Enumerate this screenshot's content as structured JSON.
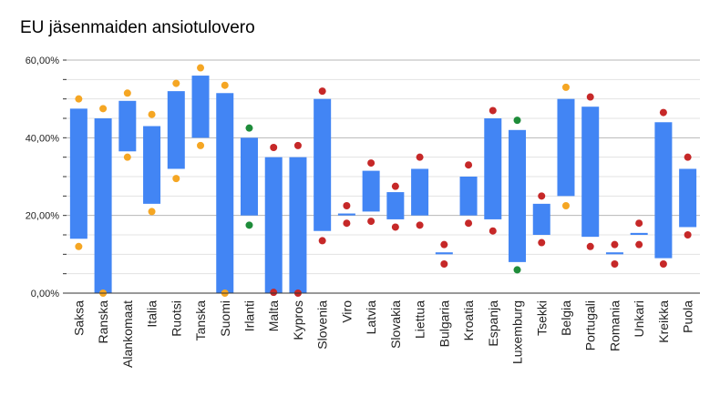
{
  "chart_data": {
    "type": "bar",
    "subtype": "floating-range",
    "title": "EU jäsenmaiden ansiotulovero",
    "xlabel": "",
    "ylabel": "",
    "ylim": [
      0,
      60
    ],
    "y_ticks": [
      "0,00%",
      "20,00%",
      "40,00%",
      "60,00%"
    ],
    "grid": true,
    "categories": [
      "Saksa",
      "Ranska",
      "Alankomaat",
      "Italia",
      "Ruotsi",
      "Tanska",
      "Suomi",
      "Irlanti",
      "Malta",
      "Kypros",
      "Slovenia",
      "Viro",
      "Latvia",
      "Slovakia",
      "Liettua",
      "Bulgaria",
      "Kroatia",
      "Espanja",
      "Luxemburg",
      "Tsekki",
      "Belgia",
      "Portugali",
      "Romania",
      "Unkari",
      "Kreikka",
      "Puola"
    ],
    "bar_color": "#4285f4",
    "series": [
      {
        "values_low": [
          14,
          0,
          36.5,
          23,
          32,
          40,
          0,
          20,
          0,
          0,
          16,
          20,
          21,
          19,
          20,
          10,
          20,
          19,
          8,
          15,
          25,
          14.5,
          10,
          15,
          9,
          17
        ],
        "values_high": [
          47.5,
          45,
          49.5,
          43,
          52,
          56,
          51.5,
          40,
          35,
          35,
          50,
          20.5,
          31.5,
          26,
          32,
          10.5,
          30,
          45,
          42,
          23,
          50,
          48,
          10.5,
          15.5,
          44,
          32
        ]
      }
    ],
    "markers": {
      "colors": {
        "orange": "#f5a623",
        "red": "#c62828",
        "green": "#1e8c3a"
      },
      "upper": {
        "values": [
          50,
          47.5,
          51.5,
          46,
          54,
          58,
          53.5,
          42.5,
          37.5,
          38,
          52,
          22.5,
          33.5,
          27.5,
          35,
          12.5,
          33,
          47,
          44.5,
          25,
          53,
          50.5,
          12.5,
          18,
          46.5,
          35
        ],
        "colors": [
          "orange",
          "orange",
          "orange",
          "orange",
          "orange",
          "orange",
          "orange",
          "green",
          "red",
          "red",
          "red",
          "red",
          "red",
          "red",
          "red",
          "red",
          "red",
          "red",
          "green",
          "red",
          "orange",
          "red",
          "red",
          "red",
          "red",
          "red"
        ]
      },
      "lower": {
        "values": [
          12,
          0,
          35,
          21,
          29.5,
          38,
          0,
          17.5,
          0.2,
          0,
          13.5,
          18,
          18.5,
          17,
          17.5,
          7.5,
          18,
          16,
          6,
          13,
          22.5,
          12,
          7.5,
          12.5,
          7.5,
          15
        ],
        "colors": [
          "orange",
          "orange",
          "orange",
          "orange",
          "orange",
          "orange",
          "orange",
          "green",
          "red",
          "red",
          "red",
          "red",
          "red",
          "red",
          "red",
          "red",
          "red",
          "red",
          "green",
          "red",
          "orange",
          "red",
          "red",
          "red",
          "red",
          "red"
        ]
      }
    }
  }
}
